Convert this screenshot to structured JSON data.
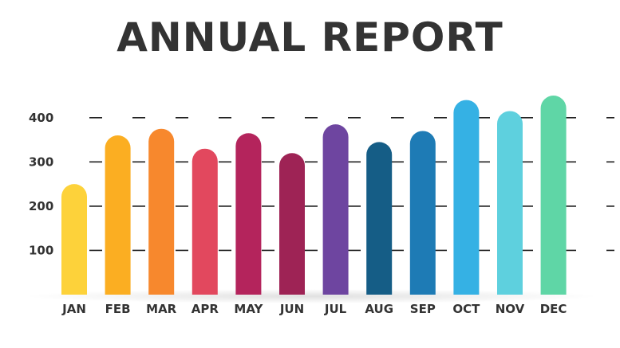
{
  "chart_data": {
    "type": "bar",
    "title": "ANNUAL REPORT",
    "categories": [
      "JAN",
      "FEB",
      "MAR",
      "APR",
      "MAY",
      "JUN",
      "JUL",
      "AUG",
      "SEP",
      "OCT",
      "NOV",
      "DEC"
    ],
    "values": [
      250,
      360,
      375,
      330,
      365,
      320,
      385,
      345,
      370,
      440,
      415,
      450
    ],
    "colors": [
      "#FDD23A",
      "#FBAE22",
      "#F7882D",
      "#E2485E",
      "#B4245C",
      "#9E2355",
      "#6E45A0",
      "#155D86",
      "#1E7BB5",
      "#35B1E4",
      "#5ED0DE",
      "#5FD6A6"
    ],
    "yticks": [
      100,
      200,
      300,
      400
    ],
    "ylim": [
      0,
      480
    ],
    "grid": true
  }
}
